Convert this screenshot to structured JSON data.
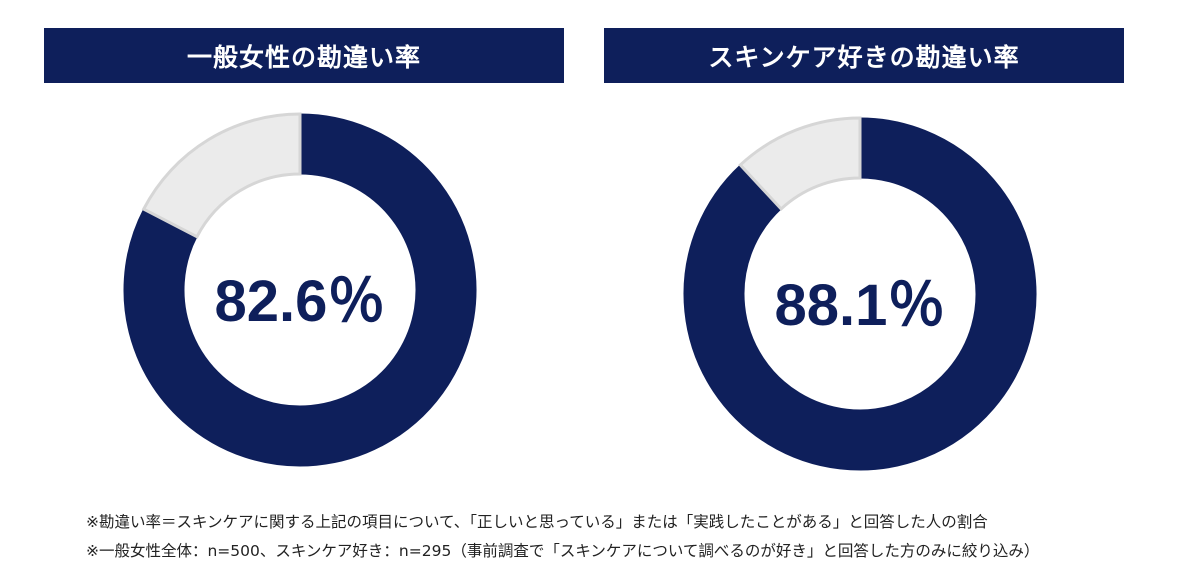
{
  "colors": {
    "primary": "#0e1f5b",
    "remainder": "#ebebeb",
    "remainder_border": "#d6d6d6"
  },
  "chart_data": [
    {
      "type": "pie",
      "title": "一般女性の勘違い率",
      "categories": [
        "勘違い",
        ""
      ],
      "values": [
        82.6,
        17.4
      ],
      "center_label": "82.6％"
    },
    {
      "type": "pie",
      "title": "スキンケア好きの勘違い率",
      "categories": [
        "勘違い",
        ""
      ],
      "values": [
        88.1,
        11.9
      ],
      "center_label": "88.1％"
    }
  ],
  "notes": [
    "※勘違い率＝スキンケアに関する上記の項目について、「正しいと思っている」または「実践したことがある」と回答した人の割合",
    "※一般女性全体：n=500、スキンケア好き：n=295（事前調査で「スキンケアについて調べるのが好き」と回答した方のみに絞り込み）"
  ]
}
